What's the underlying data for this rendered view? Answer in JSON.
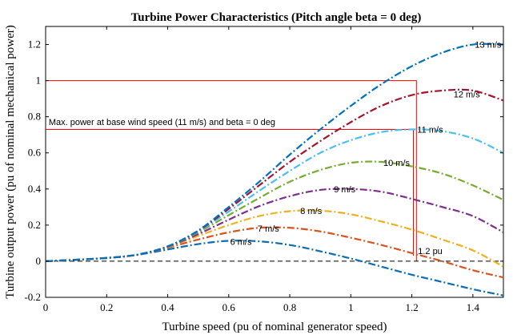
{
  "chart_data": {
    "type": "line",
    "title": "Turbine Power Characteristics (Pitch angle beta = 0 deg)",
    "xlabel": "Turbine speed (pu of nominal generator speed)",
    "ylabel": "Turbine output power (pu of nominal mechanical power)",
    "xlim": [
      0,
      1.5
    ],
    "ylim": [
      -0.2,
      1.3
    ],
    "xticks": [
      0,
      0.2,
      0.4,
      0.6,
      0.8,
      1,
      1.2,
      1.4
    ],
    "yticks": [
      -0.2,
      0,
      0.2,
      0.4,
      0.6,
      0.8,
      1,
      1.2
    ],
    "xtick_labels": [
      "0",
      "0.2",
      "0.4",
      "0.6",
      "0.8",
      "1",
      "1.2",
      "1.4"
    ],
    "ytick_labels": [
      "-0.2",
      "0",
      "0.2",
      "0.4",
      "0.6",
      "0.8",
      "1",
      "1.2"
    ],
    "grid": false,
    "zero_line": {
      "y": 0,
      "style": "dashed",
      "color": "#000000"
    },
    "series": [
      {
        "name": "6 m/s",
        "color": "#0c6db3",
        "x": [
          0,
          0.1,
          0.2,
          0.3,
          0.4,
          0.5,
          0.6,
          0.7,
          0.8,
          0.9,
          1.0,
          1.1,
          1.2,
          1.3,
          1.4,
          1.5
        ],
        "y": [
          0,
          0.008,
          0.018,
          0.035,
          0.065,
          0.095,
          0.113,
          0.11,
          0.09,
          0.055,
          0.015,
          -0.03,
          -0.075,
          -0.115,
          -0.155,
          -0.19
        ]
      },
      {
        "name": "7 m/s",
        "color": "#d9531e",
        "x": [
          0,
          0.1,
          0.2,
          0.3,
          0.4,
          0.5,
          0.6,
          0.7,
          0.8,
          0.9,
          1.0,
          1.1,
          1.2,
          1.3,
          1.4,
          1.5
        ],
        "y": [
          0,
          0.008,
          0.018,
          0.036,
          0.075,
          0.12,
          0.16,
          0.185,
          0.185,
          0.165,
          0.13,
          0.09,
          0.045,
          0.0,
          -0.05,
          -0.09
        ]
      },
      {
        "name": "8 m/s",
        "color": "#edb120",
        "x": [
          0,
          0.1,
          0.2,
          0.3,
          0.4,
          0.5,
          0.6,
          0.7,
          0.8,
          0.9,
          1.0,
          1.1,
          1.2,
          1.3,
          1.4,
          1.5
        ],
        "y": [
          0,
          0.008,
          0.018,
          0.036,
          0.078,
          0.14,
          0.2,
          0.25,
          0.277,
          0.28,
          0.26,
          0.22,
          0.175,
          0.12,
          0.06,
          -0.03
        ]
      },
      {
        "name": "9 m/s",
        "color": "#7e2f8e",
        "x": [
          0,
          0.1,
          0.2,
          0.3,
          0.4,
          0.5,
          0.6,
          0.7,
          0.8,
          0.9,
          1.0,
          1.1,
          1.2,
          1.3,
          1.4,
          1.5
        ],
        "y": [
          0,
          0.008,
          0.018,
          0.036,
          0.08,
          0.15,
          0.23,
          0.305,
          0.36,
          0.395,
          0.4,
          0.385,
          0.345,
          0.3,
          0.25,
          0.16
        ]
      },
      {
        "name": "10 m/s",
        "color": "#77ac30",
        "x": [
          0,
          0.1,
          0.2,
          0.3,
          0.4,
          0.5,
          0.6,
          0.7,
          0.8,
          0.9,
          1.0,
          1.1,
          1.2,
          1.3,
          1.4,
          1.5
        ],
        "y": [
          0,
          0.008,
          0.018,
          0.036,
          0.081,
          0.16,
          0.255,
          0.35,
          0.44,
          0.505,
          0.545,
          0.55,
          0.525,
          0.485,
          0.42,
          0.34
        ]
      },
      {
        "name": "11 m/s",
        "color": "#4dbeee",
        "x": [
          0,
          0.1,
          0.2,
          0.3,
          0.4,
          0.5,
          0.6,
          0.7,
          0.8,
          0.9,
          1.0,
          1.1,
          1.2,
          1.3,
          1.4,
          1.5
        ],
        "y": [
          0,
          0.008,
          0.018,
          0.036,
          0.082,
          0.165,
          0.275,
          0.39,
          0.5,
          0.6,
          0.67,
          0.715,
          0.73,
          0.72,
          0.68,
          0.6
        ]
      },
      {
        "name": "12 m/s",
        "color": "#a2142f",
        "x": [
          0,
          0.1,
          0.2,
          0.3,
          0.4,
          0.5,
          0.6,
          0.7,
          0.8,
          0.9,
          1.0,
          1.1,
          1.2,
          1.3,
          1.4,
          1.5
        ],
        "y": [
          0,
          0.008,
          0.018,
          0.036,
          0.082,
          0.168,
          0.29,
          0.42,
          0.55,
          0.665,
          0.77,
          0.86,
          0.92,
          0.945,
          0.945,
          0.89
        ]
      },
      {
        "name": "13 m/s",
        "color": "#0072bd",
        "x": [
          0,
          0.1,
          0.2,
          0.3,
          0.4,
          0.5,
          0.6,
          0.7,
          0.8,
          0.9,
          1.0,
          1.1,
          1.2,
          1.3,
          1.4,
          1.5
        ],
        "y": [
          0,
          0.008,
          0.018,
          0.036,
          0.082,
          0.17,
          0.3,
          0.44,
          0.59,
          0.73,
          0.86,
          0.98,
          1.08,
          1.155,
          1.2,
          1.2
        ]
      }
    ],
    "series_labels": [
      {
        "text": "6 m/s",
        "x": 0.64,
        "y": 0.108
      },
      {
        "text": "7 m/s",
        "x": 0.73,
        "y": 0.182
      },
      {
        "text": "8 m/s",
        "x": 0.87,
        "y": 0.28
      },
      {
        "text": "9 m/s",
        "x": 0.98,
        "y": 0.4
      },
      {
        "text": "10 m/s",
        "x": 1.15,
        "y": 0.545
      },
      {
        "text": "11 m/s",
        "x": 1.26,
        "y": 0.73
      },
      {
        "text": "12 m/s",
        "x": 1.38,
        "y": 0.925
      },
      {
        "text": "13 m/s",
        "x": 1.45,
        "y": 1.2
      }
    ],
    "reference_lines": [
      {
        "color": "#ff0000",
        "x": [
          0,
          1.215,
          1.215
        ],
        "y": [
          1,
          1,
          0
        ]
      },
      {
        "color": "#ff0000",
        "x": [
          0,
          1.205,
          1.205
        ],
        "y": [
          0.73,
          0.73,
          0.03
        ]
      }
    ],
    "annotations": [
      {
        "text": "Max. power at base wind speed (11 m/s) and beta = 0 deg",
        "x": 0.01,
        "y": 0.755
      },
      {
        "text": "1.2 pu",
        "x": 1.22,
        "y": 0.04
      }
    ]
  }
}
